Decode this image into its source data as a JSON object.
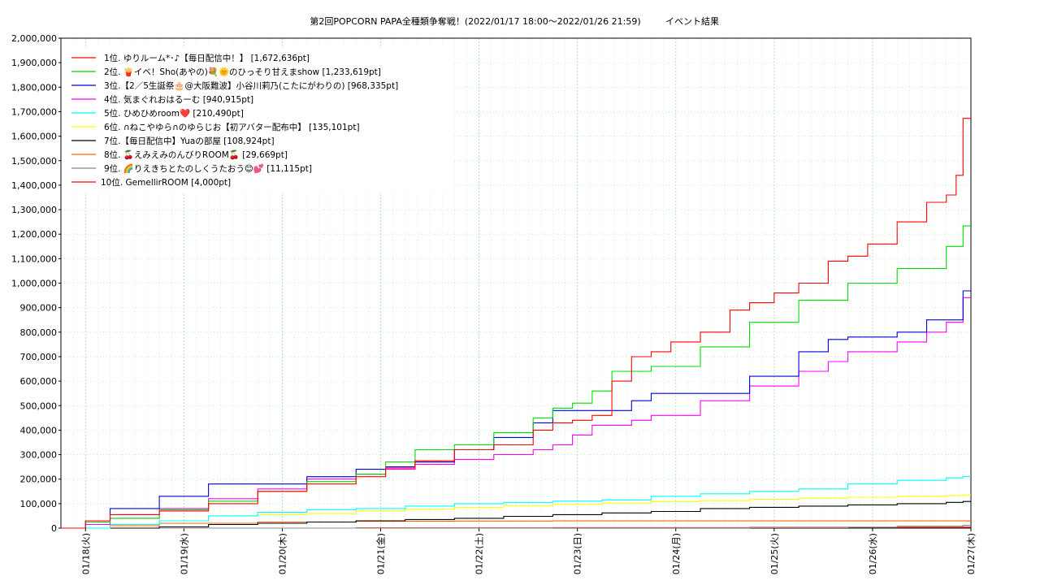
{
  "chart_data": {
    "type": "line",
    "title": "第2回POPCORN PAPA全種類争奪戦！(2022/01/17 18:00～2022/01/26 21:59)",
    "subtitle": "イベント結果",
    "xlabel": "",
    "ylabel": "",
    "x_ticks": [
      "01/18(火)",
      "01/19(水)",
      "01/20(木)",
      "01/21(金)",
      "01/22(土)",
      "01/23(日)",
      "01/24(月)",
      "01/25(火)",
      "01/26(水)",
      "01/27(木)"
    ],
    "x_range": [
      "2022/01/17 18:00",
      "2022/01/27 00:00"
    ],
    "y_ticks": [
      "0",
      "100,000",
      "200,000",
      "300,000",
      "400,000",
      "500,000",
      "600,000",
      "700,000",
      "800,000",
      "900,000",
      "1,000,000",
      "1,100,000",
      "1,200,000",
      "1,300,000",
      "1,400,000",
      "1,500,000",
      "1,600,000",
      "1,700,000",
      "1,800,000",
      "1,900,000",
      "2,000,000"
    ],
    "ylim": [
      0,
      2000000
    ],
    "grid": true,
    "legend_position": "top-left",
    "x_unit_note": "x values = days elapsed since 2022/01/17 18:00",
    "series": [
      {
        "name": "1位. ゆりルーム*･♪【毎日配信中！】 [1,672,636pt]",
        "color": "#ff0000",
        "x": [
          0,
          0.25,
          0.5,
          1.0,
          1.5,
          2.0,
          2.5,
          3.0,
          3.3,
          3.6,
          4.0,
          4.4,
          4.8,
          5.0,
          5.2,
          5.4,
          5.6,
          5.8,
          6.0,
          6.2,
          6.5,
          6.8,
          7.0,
          7.25,
          7.5,
          7.8,
          8.0,
          8.2,
          8.5,
          8.8,
          9.0,
          9.1,
          9.17
        ],
        "y": [
          0,
          30000,
          55000,
          70000,
          100000,
          150000,
          180000,
          210000,
          245000,
          275000,
          320000,
          340000,
          400000,
          430000,
          440000,
          460000,
          600000,
          700000,
          720000,
          760000,
          800000,
          890000,
          920000,
          960000,
          1000000,
          1090000,
          1110000,
          1160000,
          1250000,
          1330000,
          1360000,
          1440000,
          1672636
        ]
      },
      {
        "name": "2位. 🍟イベ！Sho(あやの)💐🌞のひっそり甘えまshow [1,233,619pt]",
        "color": "#00dd00",
        "x": [
          0,
          0.25,
          0.5,
          1.0,
          1.5,
          2.0,
          2.5,
          3.0,
          3.3,
          3.6,
          4.0,
          4.4,
          4.8,
          5.0,
          5.2,
          5.4,
          5.6,
          6.0,
          6.5,
          7.0,
          7.5,
          8.0,
          8.5,
          9.0,
          9.17
        ],
        "y": [
          0,
          25000,
          40000,
          75000,
          110000,
          150000,
          190000,
          220000,
          270000,
          320000,
          340000,
          390000,
          450000,
          490000,
          510000,
          560000,
          640000,
          660000,
          740000,
          840000,
          930000,
          1000000,
          1060000,
          1150000,
          1233619
        ]
      },
      {
        "name": "3位.【2／5生誕祭🎂@大阪難波】小谷川莉乃(こたにがわりの) [968,335pt]",
        "color": "#0000dd",
        "x": [
          0,
          0.25,
          0.5,
          1.0,
          1.5,
          2.0,
          2.5,
          3.0,
          3.3,
          3.6,
          4.0,
          4.4,
          4.8,
          5.0,
          5.4,
          5.8,
          6.0,
          6.5,
          7.0,
          7.5,
          7.8,
          8.0,
          8.5,
          8.8,
          9.0,
          9.17
        ],
        "y": [
          0,
          30000,
          80000,
          130000,
          180000,
          180000,
          210000,
          240000,
          250000,
          270000,
          320000,
          370000,
          430000,
          480000,
          480000,
          520000,
          550000,
          550000,
          620000,
          720000,
          770000,
          780000,
          800000,
          850000,
          850000,
          968335
        ]
      },
      {
        "name": "4位. 気まぐれおはるーむ [940,915pt]",
        "color": "#ff00ff",
        "x": [
          0,
          0.25,
          0.5,
          1.0,
          1.5,
          2.0,
          2.5,
          3.0,
          3.3,
          3.6,
          4.0,
          4.4,
          4.8,
          5.0,
          5.2,
          5.4,
          5.8,
          6.0,
          6.5,
          7.0,
          7.5,
          7.8,
          8.0,
          8.5,
          8.8,
          9.0,
          9.17
        ],
        "y": [
          0,
          15000,
          40000,
          80000,
          120000,
          160000,
          200000,
          220000,
          240000,
          260000,
          280000,
          300000,
          320000,
          340000,
          380000,
          420000,
          440000,
          460000,
          520000,
          580000,
          640000,
          680000,
          720000,
          760000,
          800000,
          840000,
          940915
        ]
      },
      {
        "name": "5位. ひめひめroom❤️ [210,490pt]",
        "color": "#00ffff",
        "x": [
          0,
          0.5,
          1.0,
          1.5,
          2.0,
          2.5,
          3.0,
          3.5,
          4.0,
          4.5,
          5.0,
          5.5,
          6.0,
          6.5,
          7.0,
          7.5,
          8.0,
          8.5,
          9.0,
          9.17
        ],
        "y": [
          0,
          15000,
          30000,
          50000,
          65000,
          75000,
          80000,
          90000,
          100000,
          105000,
          110000,
          115000,
          130000,
          140000,
          150000,
          160000,
          180000,
          195000,
          205000,
          210490
        ]
      },
      {
        "name": "6位. ∩ねこやゆら∩のゆらじお【初アバター配布中】 [135,101pt]",
        "color": "#ffff00",
        "x": [
          0,
          0.5,
          1.0,
          1.5,
          2.0,
          2.5,
          3.0,
          3.5,
          4.0,
          4.5,
          5.0,
          5.5,
          6.0,
          6.5,
          7.0,
          7.5,
          8.0,
          8.5,
          9.0,
          9.17
        ],
        "y": [
          0,
          15000,
          30000,
          50000,
          55000,
          60000,
          70000,
          78000,
          85000,
          92000,
          98000,
          102000,
          108000,
          112000,
          118000,
          122000,
          126000,
          130000,
          133000,
          135101
        ]
      },
      {
        "name": "7位.【毎日配信中】Yuaの部屋 [108,924pt]",
        "color": "#000000",
        "x": [
          0,
          1.0,
          1.5,
          2.0,
          2.5,
          3.0,
          3.5,
          4.0,
          4.5,
          5.0,
          5.5,
          6.0,
          6.5,
          7.0,
          7.5,
          8.0,
          8.5,
          9.0,
          9.17
        ],
        "y": [
          0,
          5000,
          15000,
          20000,
          25000,
          30000,
          35000,
          40000,
          48000,
          55000,
          62000,
          68000,
          80000,
          85000,
          90000,
          95000,
          100000,
          105000,
          108924
        ]
      },
      {
        "name": "8位. 🍒えみえみのんびりROOM🍒 [29,669pt]",
        "color": "#ff6600",
        "x": [
          0,
          0.5,
          1.0,
          2.0,
          3.0,
          4.0,
          5.0,
          6.0,
          7.0,
          8.0,
          9.17
        ],
        "y": [
          0,
          10000,
          20000,
          25000,
          28000,
          29000,
          29500,
          29669,
          29669,
          29669,
          29669
        ]
      },
      {
        "name": "9位. 🌈りえきちとたのしくうたおう😊💕 [11,115pt]",
        "color": "#888888",
        "x": [
          0,
          5.0,
          7.0,
          8.0,
          8.5,
          9.17
        ],
        "y": [
          0,
          500,
          2000,
          4000,
          8000,
          11115
        ]
      },
      {
        "name": "10位. GemellirROOM [4,000pt]",
        "color": "#ff0000",
        "x": [
          0,
          3.0,
          5.0,
          7.0,
          9.17
        ],
        "y": [
          0,
          1000,
          2000,
          3000,
          4000
        ]
      }
    ]
  }
}
